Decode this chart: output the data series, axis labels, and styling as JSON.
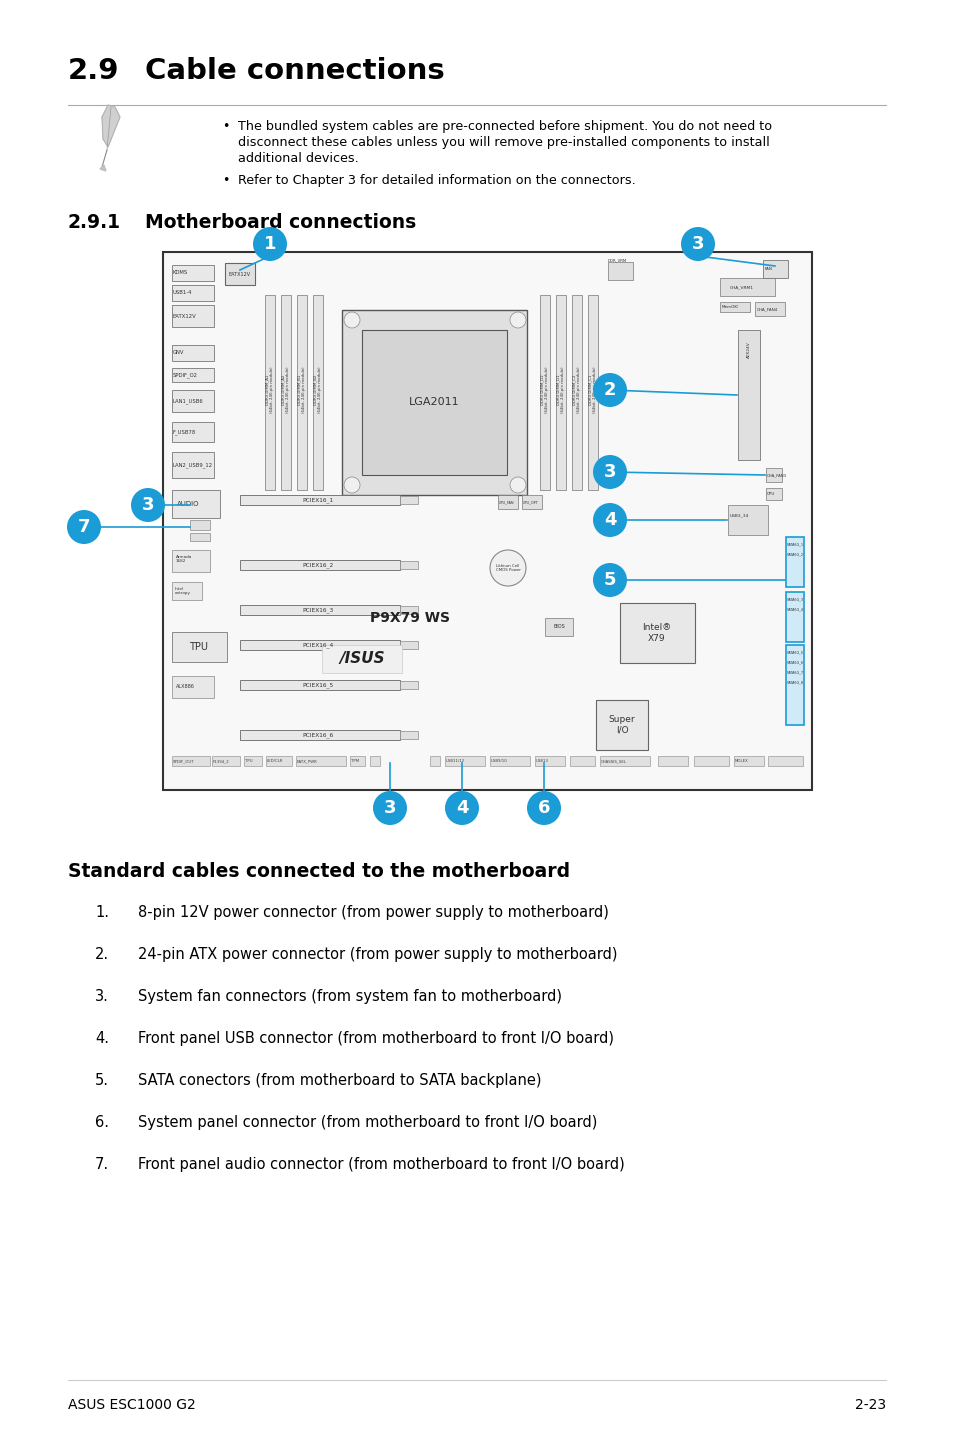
{
  "title_section": "2.9",
  "title_text": "Cable connections",
  "subtitle_section": "2.9.1",
  "subtitle_text": "Motherboard connections",
  "note_bullet1_line1": "The bundled system cables are pre-connected before shipment. You do not need to",
  "note_bullet1_line2": "disconnect these cables unless you will remove pre-installed components to install",
  "note_bullet1_line3": "additional devices.",
  "note_bullet2": "Refer to Chapter 3 for detailed information on the connectors.",
  "list_title": "Standard cables connected to the motherboard",
  "list_items": [
    "8-pin 12V power connector (from power supply to motherboard)",
    "24-pin ATX power connector (from power supply to motherboard)",
    "System fan connectors (from system fan to motherboard)",
    "Front panel USB connector (from motherboard to front I/O board)",
    "SATA conectors (from motherboard to SATA backplane)",
    "System panel connector (from motherboard to front I/O board)",
    "Front panel audio connector (from motherboard to front I/O board)"
  ],
  "footer_left": "ASUS ESC1000 G2",
  "footer_right": "2-23",
  "bg_color": "#ffffff",
  "text_color": "#000000",
  "circle_color": "#1b9cd6",
  "circle_text_color": "#ffffff",
  "board_bg": "#f8f8f8",
  "board_border": "#333333",
  "connector_bg": "#e8e8e8",
  "connector_border": "#666666",
  "sata_border": "#1b9cd6",
  "sata_bg": "#d0eaf8"
}
